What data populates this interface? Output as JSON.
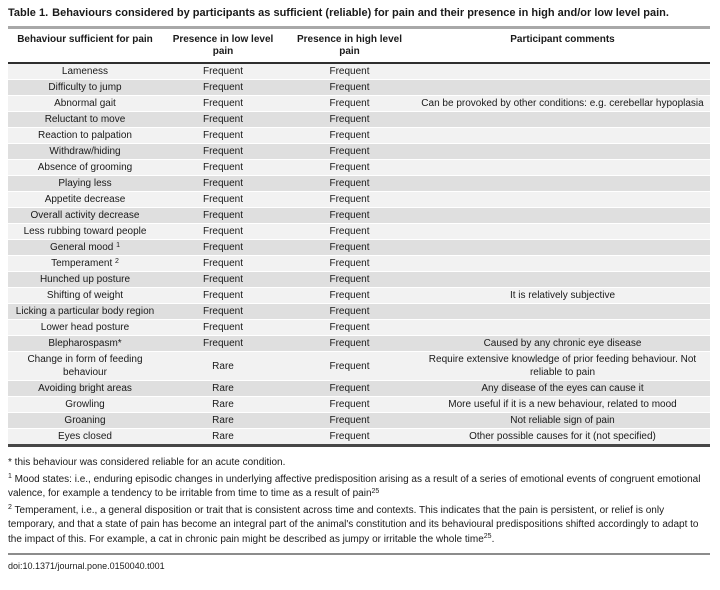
{
  "title": {
    "label": "Table 1.",
    "text": "Behaviours considered by participants as sufficient (reliable) for pain and their presence in high and/or low level pain."
  },
  "table": {
    "columns": [
      {
        "lines": [
          "Behaviour sufficient for pain"
        ]
      },
      {
        "lines": [
          "Presence in low level",
          "pain"
        ]
      },
      {
        "lines": [
          "Presence in high level",
          "pain"
        ]
      },
      {
        "lines": [
          "Participant comments"
        ]
      }
    ],
    "rows": [
      {
        "behaviour": "Lameness",
        "low": "Frequent",
        "high": "Frequent",
        "comment": ""
      },
      {
        "behaviour": "Difficulty to jump",
        "low": "Frequent",
        "high": "Frequent",
        "comment": ""
      },
      {
        "behaviour": "Abnormal gait",
        "low": "Frequent",
        "high": "Frequent",
        "comment": "Can be provoked by other conditions: e.g. cerebellar hypoplasia"
      },
      {
        "behaviour": "Reluctant to move",
        "low": "Frequent",
        "high": "Frequent",
        "comment": ""
      },
      {
        "behaviour": "Reaction to palpation",
        "low": "Frequent",
        "high": "Frequent",
        "comment": ""
      },
      {
        "behaviour": "Withdraw/hiding",
        "low": "Frequent",
        "high": "Frequent",
        "comment": ""
      },
      {
        "behaviour": "Absence of grooming",
        "low": "Frequent",
        "high": "Frequent",
        "comment": ""
      },
      {
        "behaviour": "Playing less",
        "low": "Frequent",
        "high": "Frequent",
        "comment": ""
      },
      {
        "behaviour": "Appetite decrease",
        "low": "Frequent",
        "high": "Frequent",
        "comment": ""
      },
      {
        "behaviour": "Overall activity decrease",
        "low": "Frequent",
        "high": "Frequent",
        "comment": ""
      },
      {
        "behaviour": "Less rubbing toward people",
        "low": "Frequent",
        "high": "Frequent",
        "comment": ""
      },
      {
        "behaviour": "General mood",
        "behaviour_sup": "1",
        "low": "Frequent",
        "high": "Frequent",
        "comment": ""
      },
      {
        "behaviour": "Temperament",
        "behaviour_sup": "2",
        "low": "Frequent",
        "high": "Frequent",
        "comment": ""
      },
      {
        "behaviour": "Hunched up posture",
        "low": "Frequent",
        "high": "Frequent",
        "comment": ""
      },
      {
        "behaviour": "Shifting of weight",
        "low": "Frequent",
        "high": "Frequent",
        "comment": "It is relatively subjective"
      },
      {
        "behaviour": "Licking a particular body region",
        "low": "Frequent",
        "high": "Frequent",
        "comment": ""
      },
      {
        "behaviour": "Lower head posture",
        "low": "Frequent",
        "high": "Frequent",
        "comment": ""
      },
      {
        "behaviour": "Blepharospasm*",
        "low": "Frequent",
        "high": "Frequent",
        "comment": "Caused by any chronic eye disease"
      },
      {
        "behaviour": "Change in form of feeding behaviour",
        "low": "Rare",
        "high": "Frequent",
        "comment": "Require extensive knowledge of prior feeding behaviour. Not reliable to pain"
      },
      {
        "behaviour": "Avoiding bright areas",
        "low": "Rare",
        "high": "Frequent",
        "comment": "Any disease of the eyes can cause it"
      },
      {
        "behaviour": "Growling",
        "low": "Rare",
        "high": "Frequent",
        "comment": "More useful if it is a new behaviour, related to mood"
      },
      {
        "behaviour": "Groaning",
        "low": "Rare",
        "high": "Frequent",
        "comment": "Not reliable sign of pain"
      },
      {
        "behaviour": "Eyes closed",
        "low": "Rare",
        "high": "Frequent",
        "comment": "Other possible causes for it (not specified)"
      }
    ]
  },
  "footnotes": [
    {
      "segments": [
        {
          "text": "* this behaviour was considered reliable for an acute condition."
        }
      ]
    },
    {
      "segments": [
        {
          "sup": "1"
        },
        {
          "text": " Mood states: i.e., enduring episodic changes in underlying affective predisposition arising as a result of a series of emotional events of congruent emotional valence, for example a tendency to be irritable from time to time as a result of pain"
        },
        {
          "sup": "25"
        }
      ]
    },
    {
      "segments": [
        {
          "sup": "2"
        },
        {
          "text": " Temperament, i.e., a general disposition or trait that is consistent across time and contexts. This indicates that the pain is persistent, or relief is only temporary, and that a state of pain has become an integral part of the animal's constitution and its behavioural predispositions shifted accordingly to adapt to the impact of this. For example, a cat in chronic pain might be described as jumpy or irritable the whole time"
        },
        {
          "sup": "25"
        },
        {
          "text": "."
        }
      ]
    }
  ],
  "doi": "doi:10.1371/journal.pone.0150040.t001",
  "colors": {
    "row_light": "#f2f2f2",
    "row_dark": "#dfdfdf",
    "title_rule": "#a8a8a8",
    "header_rule": "#2f2f2f",
    "table_bottom_rule": "#474747",
    "doi_rule": "#8c8c8c",
    "text": "#1a1a1a"
  }
}
